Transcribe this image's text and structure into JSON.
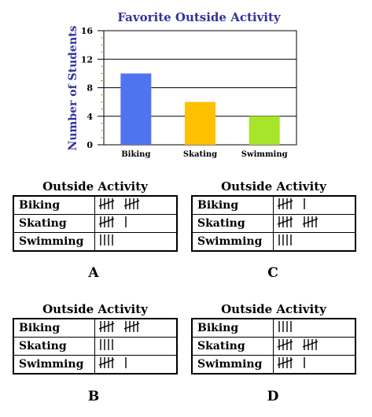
{
  "chart_data": {
    "type": "bar",
    "title": "Favorite Outside Activity",
    "ylabel": "Number of Students",
    "xlabel": "",
    "categories": [
      "Biking",
      "Skating",
      "Swimming"
    ],
    "values": [
      10,
      6,
      4
    ],
    "colors": [
      "#4f74f0",
      "#ffc000",
      "#a6e52a"
    ],
    "ylim": [
      0,
      16
    ],
    "yticks": [
      "0",
      "4",
      "8",
      "12",
      "16"
    ],
    "grid": true
  },
  "options": [
    {
      "letter": "A",
      "title": "Outside Activity",
      "rows": [
        {
          "label": "Biking",
          "count": 10
        },
        {
          "label": "Skating",
          "count": 6
        },
        {
          "label": "Swimming",
          "count": 4
        }
      ]
    },
    {
      "letter": "C",
      "title": "Outside Activity",
      "rows": [
        {
          "label": "Biking",
          "count": 6
        },
        {
          "label": "Skating",
          "count": 10
        },
        {
          "label": "Swimming",
          "count": 4
        }
      ]
    },
    {
      "letter": "B",
      "title": "Outside Activity",
      "rows": [
        {
          "label": "Biking",
          "count": 10
        },
        {
          "label": "Skating",
          "count": 4
        },
        {
          "label": "Swimming",
          "count": 6
        }
      ]
    },
    {
      "letter": "D",
      "title": "Outside Activity",
      "rows": [
        {
          "label": "Biking",
          "count": 4
        },
        {
          "label": "Skating",
          "count": 10
        },
        {
          "label": "Swimming",
          "count": 6
        }
      ]
    }
  ]
}
